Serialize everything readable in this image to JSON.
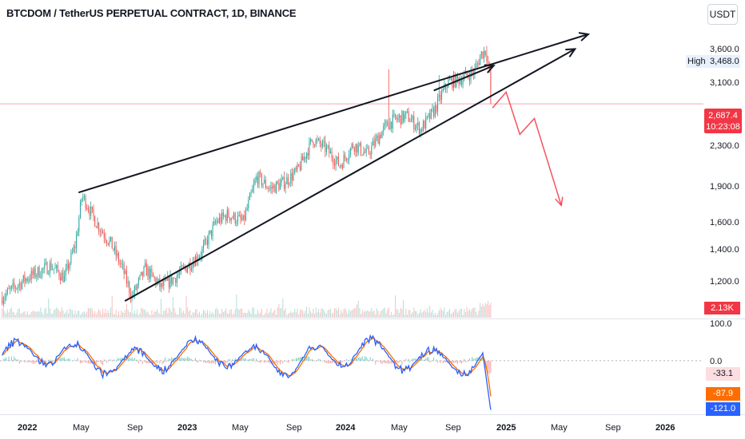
{
  "header": {
    "title": "BTCDOM / TetherUS PERPETUAL CONTRACT, 1D, BINANCE",
    "currency_badge": "USDT"
  },
  "price_axis": {
    "labels": [
      "3,600.0",
      "3,100.0",
      "2,300.0",
      "1,900.0",
      "1,600.0",
      "1,400.0",
      "1,200.0"
    ]
  },
  "high_tag": {
    "label": "High",
    "value": "3,468.0"
  },
  "last_price_tag": {
    "price": "2,687.4",
    "countdown": "10:23:08"
  },
  "volume_tag": "2.13K",
  "oscillator_axis": {
    "top": "100.0",
    "zero": "0.0"
  },
  "oscillator_tags": [
    {
      "value": "-33.1",
      "bg": "#fcdde0",
      "fg": "#131722"
    },
    {
      "value": "-87.9",
      "bg": "#ff6d00",
      "fg": "#ffffff"
    },
    {
      "value": "-121.0",
      "bg": "#2962ff",
      "fg": "#ffffff"
    }
  ],
  "time_axis": [
    {
      "label": "2022",
      "bold": true
    },
    {
      "label": "May",
      "bold": false
    },
    {
      "label": "Sep",
      "bold": false
    },
    {
      "label": "2023",
      "bold": true
    },
    {
      "label": "May",
      "bold": false
    },
    {
      "label": "Sep",
      "bold": false
    },
    {
      "label": "2024",
      "bold": true
    },
    {
      "label": "May",
      "bold": false
    },
    {
      "label": "Sep",
      "bold": false
    },
    {
      "label": "2025",
      "bold": true
    },
    {
      "label": "May",
      "bold": false
    },
    {
      "label": "Sep",
      "bold": false
    },
    {
      "label": "2026",
      "bold": true
    }
  ],
  "colors": {
    "up": "#26a69a",
    "down": "#ef5350",
    "drawing": "#131722",
    "projection": "#f23645",
    "osc_blue": "#2962ff",
    "osc_orange": "#ff6d00"
  },
  "chart_data": {
    "type": "candlestick",
    "symbol": "BTCDOM / TetherUS PERPETUAL CONTRACT",
    "interval": "1D",
    "exchange": "BINANCE",
    "y_scale": "log",
    "ylim": [
      1050,
      3900
    ],
    "x_range": [
      "2021-11-15",
      "2026-03-10"
    ],
    "last_price": 2687.4,
    "high": 3468.0,
    "close_path": [
      {
        "date": "2021-11-20",
        "close": 1150
      },
      {
        "date": "2022-01-15",
        "close": 1250
      },
      {
        "date": "2022-03-10",
        "close": 1320
      },
      {
        "date": "2022-04-10",
        "close": 1250
      },
      {
        "date": "2022-05-05",
        "close": 1450
      },
      {
        "date": "2022-05-20",
        "close": 1800
      },
      {
        "date": "2022-06-20",
        "close": 1600
      },
      {
        "date": "2022-07-25",
        "close": 1450
      },
      {
        "date": "2022-08-20",
        "close": 1300
      },
      {
        "date": "2022-09-10",
        "close": 1150
      },
      {
        "date": "2022-10-10",
        "close": 1300
      },
      {
        "date": "2022-11-15",
        "close": 1200
      },
      {
        "date": "2022-12-15",
        "close": 1250
      },
      {
        "date": "2023-01-15",
        "close": 1320
      },
      {
        "date": "2023-02-15",
        "close": 1400
      },
      {
        "date": "2023-03-20",
        "close": 1600
      },
      {
        "date": "2023-04-15",
        "close": 1650
      },
      {
        "date": "2023-05-20",
        "close": 1600
      },
      {
        "date": "2023-06-20",
        "close": 1950
      },
      {
        "date": "2023-07-20",
        "close": 1850
      },
      {
        "date": "2023-08-20",
        "close": 1900
      },
      {
        "date": "2023-09-20",
        "close": 2000
      },
      {
        "date": "2023-10-25",
        "close": 2300
      },
      {
        "date": "2023-11-25",
        "close": 2200
      },
      {
        "date": "2023-12-25",
        "close": 2050
      },
      {
        "date": "2024-01-25",
        "close": 2250
      },
      {
        "date": "2024-02-25",
        "close": 2150
      },
      {
        "date": "2024-03-25",
        "close": 2350
      },
      {
        "date": "2024-04-10",
        "close": 2450
      },
      {
        "date": "2024-04-25",
        "close": 2500
      },
      {
        "date": "2024-05-25",
        "close": 2550
      },
      {
        "date": "2024-06-25",
        "close": 2400
      },
      {
        "date": "2024-07-25",
        "close": 2600
      },
      {
        "date": "2024-08-25",
        "close": 2950
      },
      {
        "date": "2024-09-25",
        "close": 3000
      },
      {
        "date": "2024-10-25",
        "close": 3100
      },
      {
        "date": "2024-11-10",
        "close": 3350
      },
      {
        "date": "2024-11-20",
        "close": 3400
      },
      {
        "date": "2024-11-27",
        "close": 3150
      },
      {
        "date": "2024-12-03",
        "close": 2687.4
      }
    ],
    "spikes": [
      {
        "date": "2024-04-14",
        "high": 3130
      },
      {
        "date": "2024-08-05",
        "high": 3050
      },
      {
        "date": "2024-11-22",
        "high": 3468
      }
    ],
    "drawings": {
      "upper_trendline": [
        {
          "date": "2022-05-12",
          "price": 1820
        },
        {
          "date": "2025-07-10",
          "price": 3650
        }
      ],
      "lower_trendline": [
        {
          "date": "2022-08-25",
          "price": 1130
        },
        {
          "date": "2025-06-10",
          "price": 3420
        }
      ],
      "short_channel_line": [
        {
          "date": "2024-07-25",
          "price": 2850
        },
        {
          "date": "2024-12-08",
          "price": 3180
        }
      ],
      "projection_path": [
        {
          "date": "2024-12-05",
          "price": 2640
        },
        {
          "date": "2025-01-05",
          "price": 2830
        },
        {
          "date": "2025-02-05",
          "price": 2350
        },
        {
          "date": "2025-03-10",
          "price": 2520
        },
        {
          "date": "2025-05-10",
          "price": 1720
        }
      ]
    },
    "oscillator": {
      "range": [
        -130,
        100
      ],
      "blue_last": -121.0,
      "orange_last": -87.9,
      "histogram_last": -33.1
    },
    "volume_last": "2.13K"
  }
}
